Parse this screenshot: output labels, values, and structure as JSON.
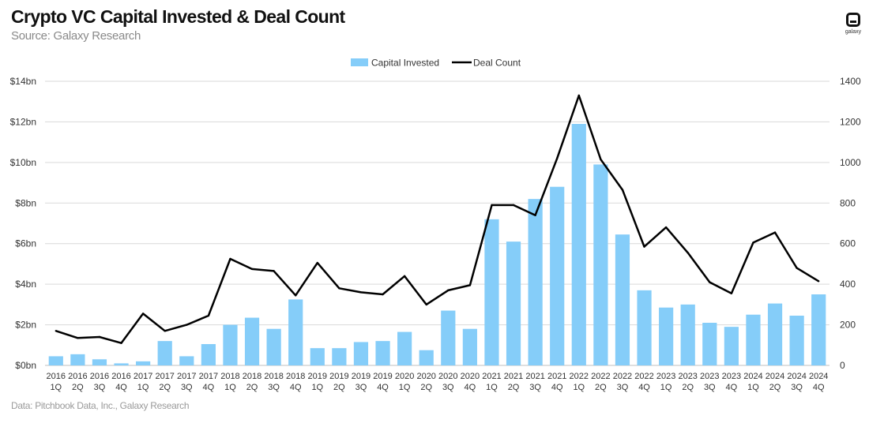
{
  "header": {
    "title": "Crypto VC Capital Invested & Deal Count",
    "subtitle": "Source: Galaxy Research",
    "logo_text": "galaxy"
  },
  "footer": {
    "source_note": "Data: Pitchbook Data, Inc., Galaxy Research"
  },
  "colors": {
    "bar": "#85cdf9",
    "line": "#000000",
    "grid": "#d9d9d9"
  },
  "chart_data": {
    "type": "bar",
    "title": "Crypto VC Capital Invested & Deal Count",
    "categories": [
      [
        "2016",
        "1Q"
      ],
      [
        "2016",
        "2Q"
      ],
      [
        "2016",
        "3Q"
      ],
      [
        "2016",
        "4Q"
      ],
      [
        "2017",
        "1Q"
      ],
      [
        "2017",
        "2Q"
      ],
      [
        "2017",
        "3Q"
      ],
      [
        "2017",
        "4Q"
      ],
      [
        "2018",
        "1Q"
      ],
      [
        "2018",
        "2Q"
      ],
      [
        "2018",
        "3Q"
      ],
      [
        "2018",
        "4Q"
      ],
      [
        "2019",
        "1Q"
      ],
      [
        "2019",
        "2Q"
      ],
      [
        "2019",
        "3Q"
      ],
      [
        "2019",
        "4Q"
      ],
      [
        "2020",
        "1Q"
      ],
      [
        "2020",
        "2Q"
      ],
      [
        "2020",
        "3Q"
      ],
      [
        "2020",
        "4Q"
      ],
      [
        "2021",
        "1Q"
      ],
      [
        "2021",
        "2Q"
      ],
      [
        "2021",
        "3Q"
      ],
      [
        "2021",
        "4Q"
      ],
      [
        "2022",
        "1Q"
      ],
      [
        "2022",
        "2Q"
      ],
      [
        "2022",
        "3Q"
      ],
      [
        "2022",
        "4Q"
      ],
      [
        "2023",
        "1Q"
      ],
      [
        "2023",
        "2Q"
      ],
      [
        "2023",
        "3Q"
      ],
      [
        "2023",
        "4Q"
      ],
      [
        "2024",
        "1Q"
      ],
      [
        "2024",
        "2Q"
      ],
      [
        "2024",
        "3Q"
      ],
      [
        "2024",
        "4Q"
      ]
    ],
    "series": [
      {
        "name": "Capital Invested",
        "type": "bar",
        "axis": "left",
        "unit": "$bn",
        "values": [
          0.45,
          0.55,
          0.3,
          0.1,
          0.2,
          1.2,
          0.45,
          1.05,
          2.0,
          2.35,
          1.8,
          3.25,
          0.85,
          0.85,
          1.15,
          1.2,
          1.65,
          0.75,
          2.7,
          1.8,
          7.2,
          6.1,
          8.2,
          8.8,
          11.9,
          9.9,
          6.45,
          3.7,
          2.85,
          3.0,
          2.1,
          1.9,
          2.5,
          3.05,
          2.45,
          3.5
        ]
      },
      {
        "name": "Deal Count",
        "type": "line",
        "axis": "right",
        "values": [
          170,
          135,
          140,
          110,
          255,
          170,
          200,
          245,
          525,
          475,
          465,
          345,
          505,
          380,
          360,
          350,
          440,
          300,
          370,
          395,
          790,
          790,
          740,
          1020,
          1330,
          1015,
          865,
          585,
          680,
          555,
          410,
          355,
          605,
          655,
          480,
          415
        ]
      }
    ],
    "y_left": {
      "min": 0,
      "max": 14,
      "ticks": [
        "$0bn",
        "$2bn",
        "$4bn",
        "$6bn",
        "$8bn",
        "$10bn",
        "$12bn",
        "$14bn"
      ]
    },
    "y_right": {
      "min": 0,
      "max": 1400,
      "ticks": [
        "0",
        "200",
        "400",
        "600",
        "800",
        "1000",
        "1200",
        "1400"
      ]
    },
    "legend": [
      "Capital Invested",
      "Deal Count"
    ],
    "legend_position": "top-center",
    "grid": true
  }
}
